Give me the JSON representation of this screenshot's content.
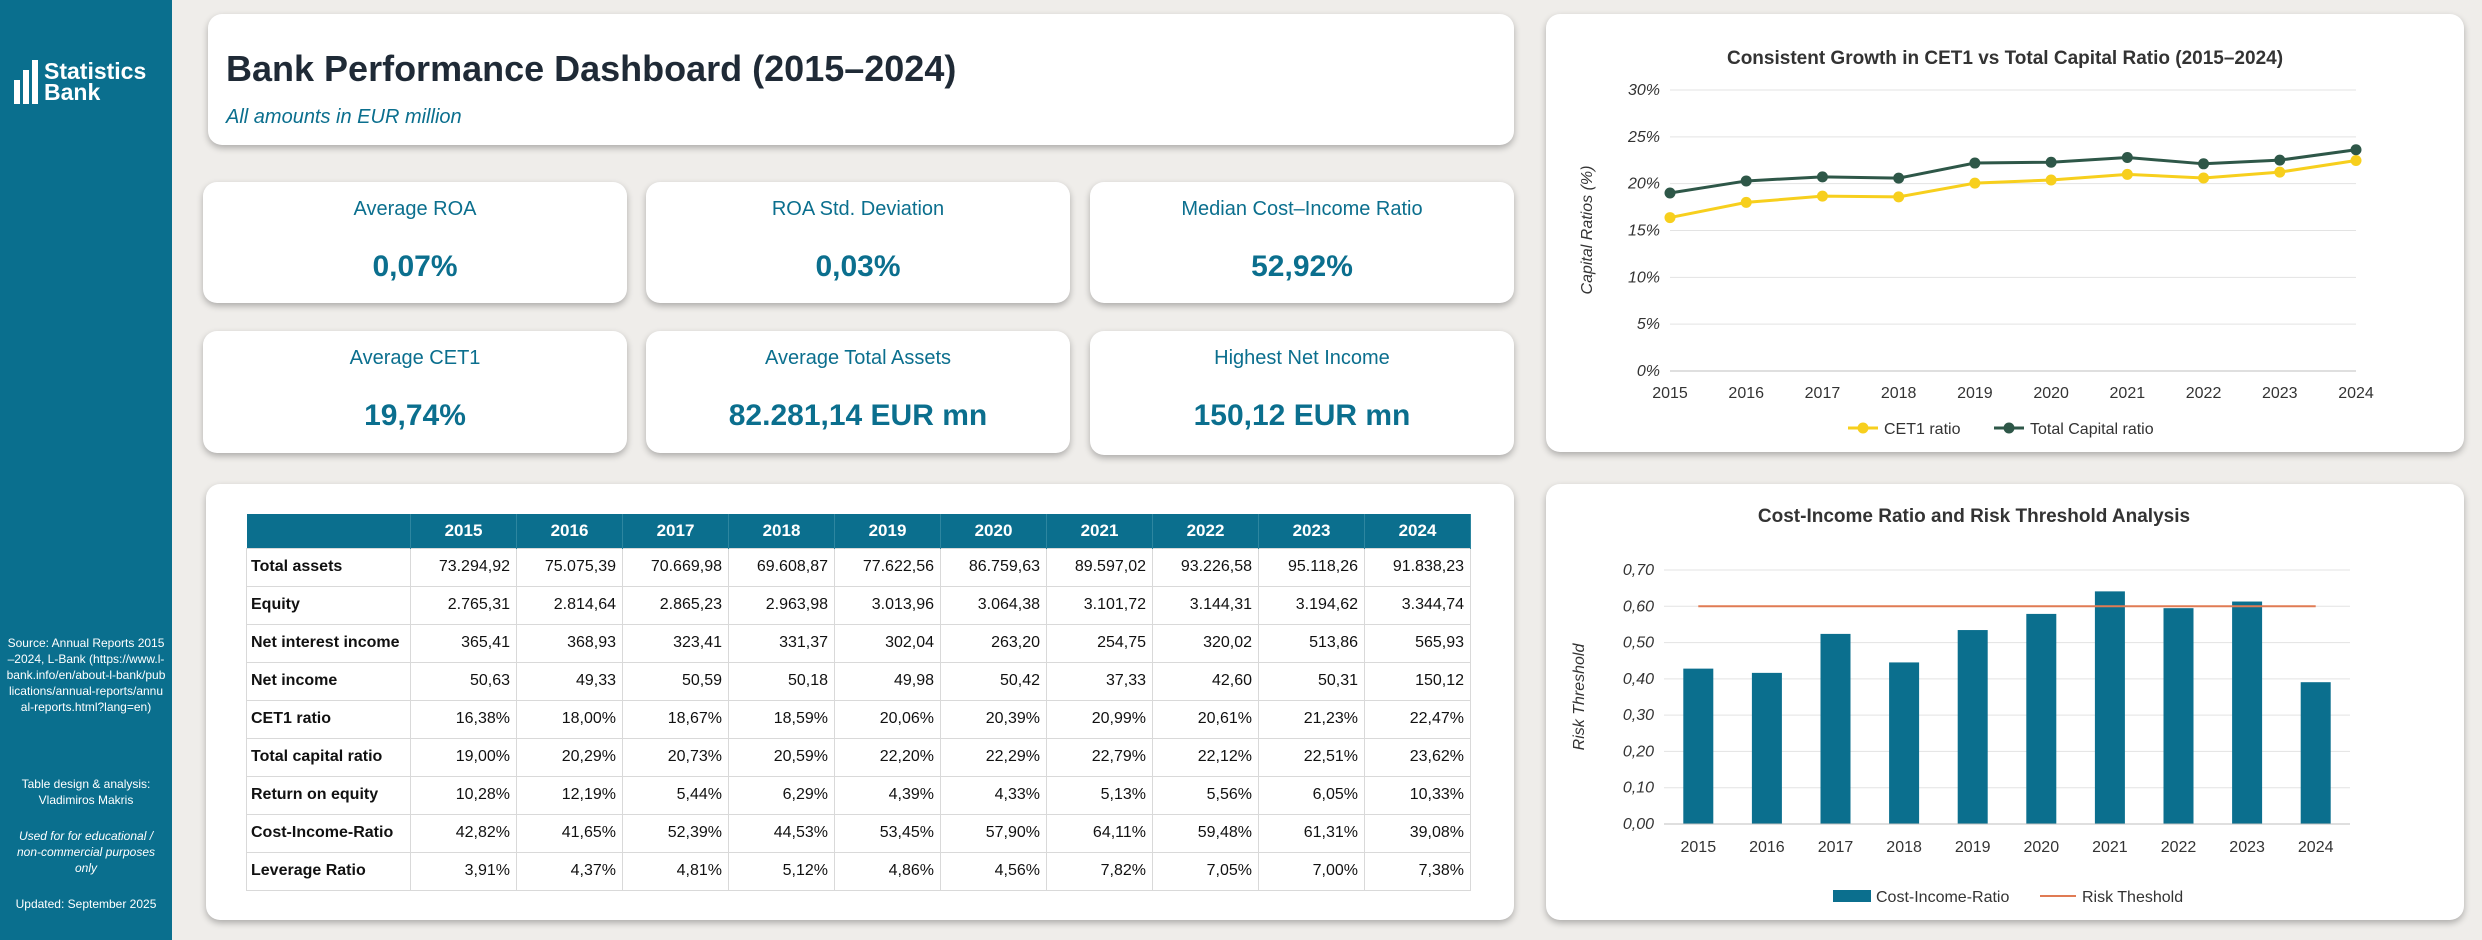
{
  "sidebar": {
    "logo_line1": "Statistics",
    "logo_line2": "Bank",
    "source": "Source: Annual Reports 2015–2024, L-Bank (https://www.l-bank.info/en/about-l-bank/publications/annual-reports/annual-reports.html?lang=en)",
    "design": "Table design & analysis: Vladimiros Makris",
    "edu": "Used for for educational / non-commercial purposes only",
    "updated": "Updated: September 2025"
  },
  "header": {
    "title": "Bank Performance Dashboard (2015–2024)",
    "subtitle": "All amounts in EUR million"
  },
  "kpis": [
    {
      "label": "Average ROA",
      "value": "0,07%"
    },
    {
      "label": "ROA Std. Deviation",
      "value": "0,03%"
    },
    {
      "label": "Median Cost–Income Ratio",
      "value": "52,92%"
    },
    {
      "label": "Average CET1",
      "value": "19,74%"
    },
    {
      "label": "Average Total Assets",
      "value": "82.281,14 EUR mn"
    },
    {
      "label": "Highest Net Income",
      "value": "150,12 EUR mn"
    }
  ],
  "table": {
    "columns": [
      "2015",
      "2016",
      "2017",
      "2018",
      "2019",
      "2020",
      "2021",
      "2022",
      "2023",
      "2024"
    ],
    "rows": [
      {
        "label": "Total assets",
        "values": [
          "73.294,92",
          "75.075,39",
          "70.669,98",
          "69.608,87",
          "77.622,56",
          "86.759,63",
          "89.597,02",
          "93.226,58",
          "95.118,26",
          "91.838,23"
        ]
      },
      {
        "label": "Equity",
        "values": [
          "2.765,31",
          "2.814,64",
          "2.865,23",
          "2.963,98",
          "3.013,96",
          "3.064,38",
          "3.101,72",
          "3.144,31",
          "3.194,62",
          "3.344,74"
        ]
      },
      {
        "label": "Net interest income",
        "values": [
          "365,41",
          "368,93",
          "323,41",
          "331,37",
          "302,04",
          "263,20",
          "254,75",
          "320,02",
          "513,86",
          "565,93"
        ]
      },
      {
        "label": "Net income",
        "values": [
          "50,63",
          "49,33",
          "50,59",
          "50,18",
          "49,98",
          "50,42",
          "37,33",
          "42,60",
          "50,31",
          "150,12"
        ]
      },
      {
        "label": "CET1 ratio",
        "values": [
          "16,38%",
          "18,00%",
          "18,67%",
          "18,59%",
          "20,06%",
          "20,39%",
          "20,99%",
          "20,61%",
          "21,23%",
          "22,47%"
        ]
      },
      {
        "label": "Total capital ratio",
        "values": [
          "19,00%",
          "20,29%",
          "20,73%",
          "20,59%",
          "22,20%",
          "22,29%",
          "22,79%",
          "22,12%",
          "22,51%",
          "23,62%"
        ]
      },
      {
        "label": "Return on equity",
        "values": [
          "10,28%",
          "12,19%",
          "5,44%",
          "6,29%",
          "4,39%",
          "4,33%",
          "5,13%",
          "5,56%",
          "6,05%",
          "10,33%"
        ]
      },
      {
        "label": "Cost-Income-Ratio",
        "values": [
          "42,82%",
          "41,65%",
          "52,39%",
          "44,53%",
          "53,45%",
          "57,90%",
          "64,11%",
          "59,48%",
          "61,31%",
          "39,08%"
        ]
      },
      {
        "label": "Leverage Ratio",
        "values": [
          "3,91%",
          "4,37%",
          "4,81%",
          "5,12%",
          "4,86%",
          "4,56%",
          "7,82%",
          "7,05%",
          "7,00%",
          "7,38%"
        ]
      }
    ]
  },
  "chart_data": [
    {
      "type": "line",
      "title": "Consistent Growth in CET1 vs Total Capital Ratio (2015–2024)",
      "xlabel": "",
      "ylabel": "Capital Ratios (%)",
      "x": [
        "2015",
        "2016",
        "2017",
        "2018",
        "2019",
        "2020",
        "2021",
        "2022",
        "2023",
        "2024"
      ],
      "ylim": [
        0,
        30
      ],
      "yticks": [
        "0%",
        "5%",
        "10%",
        "15%",
        "20%",
        "25%",
        "30%"
      ],
      "series": [
        {
          "name": "CET1 ratio",
          "color": "#f7cf1d",
          "values": [
            16.38,
            18.0,
            18.67,
            18.59,
            20.06,
            20.39,
            20.99,
            20.61,
            21.23,
            22.47
          ]
        },
        {
          "name": "Total Capital ratio",
          "color": "#2e5748",
          "values": [
            19.0,
            20.29,
            20.73,
            20.59,
            22.2,
            22.29,
            22.79,
            22.12,
            22.51,
            23.62
          ]
        }
      ],
      "grid": true,
      "legend": "bottom"
    },
    {
      "type": "bar",
      "title": "Cost-Income Ratio and Risk Threshold Analysis",
      "xlabel": "",
      "ylabel": "Risk Threshold",
      "categories": [
        "2015",
        "2016",
        "2017",
        "2018",
        "2019",
        "2020",
        "2021",
        "2022",
        "2023",
        "2024"
      ],
      "ylim": [
        0,
        0.7
      ],
      "yticks": [
        "0,00",
        "0,10",
        "0,20",
        "0,30",
        "0,40",
        "0,50",
        "0,60",
        "0,70"
      ],
      "series": [
        {
          "name": "Cost-Income-Ratio",
          "color": "#0b6f8e",
          "values": [
            0.4282,
            0.4165,
            0.5239,
            0.4453,
            0.5345,
            0.579,
            0.6411,
            0.5948,
            0.6131,
            0.3908
          ]
        },
        {
          "name": "Risk Theshold",
          "color": "#e07b54",
          "type": "line",
          "values": [
            0.6,
            0.6,
            0.6,
            0.6,
            0.6,
            0.6,
            0.6,
            0.6,
            0.6,
            0.6
          ]
        }
      ],
      "grid": true,
      "legend": "bottom"
    }
  ]
}
